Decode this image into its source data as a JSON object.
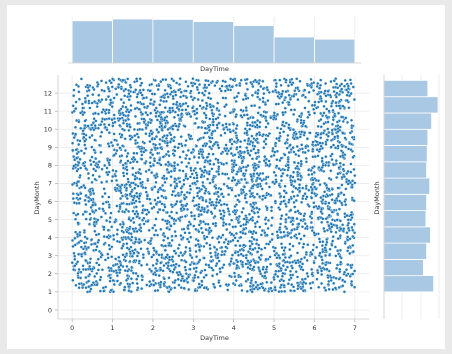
{
  "chart_data": {
    "type": "scatter",
    "title": "",
    "xlabel": "DayTime",
    "ylabel": "DayMonth",
    "xlim": [
      -0.35,
      7.35
    ],
    "ylim": [
      -0.5,
      13.0
    ],
    "x_ticks": [
      "0",
      "1",
      "2",
      "3",
      "4",
      "5",
      "6",
      "7"
    ],
    "y_ticks": [
      "0",
      "1",
      "2",
      "3",
      "4",
      "5",
      "6",
      "7",
      "8",
      "9",
      "10",
      "11",
      "12"
    ],
    "grid": true,
    "point_color": "#1f77b4",
    "point_edge_color": "#ffffff",
    "scatter_x_range": [
      0,
      7
    ],
    "scatter_y_range": [
      1,
      12.8
    ],
    "marginal_x": {
      "label": "DayTime",
      "bin_edges": [
        0,
        1,
        2,
        3,
        4,
        5,
        6,
        7
      ],
      "counts": [
        96,
        100,
        99,
        94,
        85,
        59,
        54
      ],
      "color": "#a9c8e3"
    },
    "marginal_y": {
      "label": "DayMonth",
      "bin_edges": [
        1.0,
        1.9,
        2.8,
        3.7,
        4.6,
        5.5,
        6.4,
        7.3,
        8.2,
        9.1,
        10.0,
        10.9,
        11.8,
        12.7
      ],
      "counts": [
        78,
        62,
        67,
        73,
        66,
        67,
        72,
        67,
        68,
        69,
        75,
        85,
        69
      ],
      "color": "#a9c8e3"
    }
  }
}
